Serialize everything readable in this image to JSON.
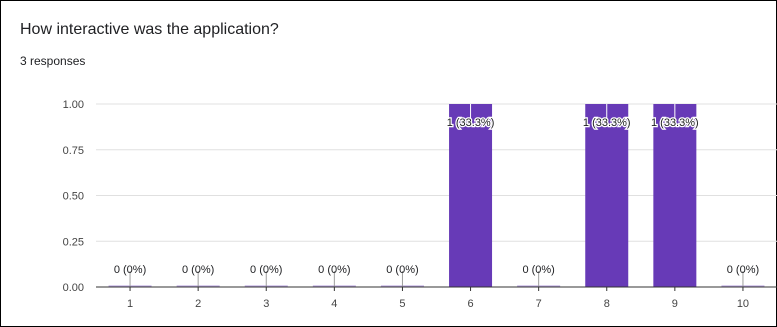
{
  "card": {
    "title": "How interactive was the application?",
    "responses": "3 responses"
  },
  "colors": {
    "bar": "#673ab7",
    "grid": "#e0e0e0",
    "axis": "#333333",
    "text": "#202124"
  },
  "chart_data": {
    "type": "bar",
    "title": "",
    "xlabel": "",
    "ylabel": "",
    "categories": [
      "1",
      "2",
      "3",
      "4",
      "5",
      "6",
      "7",
      "8",
      "9",
      "10"
    ],
    "values": [
      0,
      0,
      0,
      0,
      0,
      1,
      0,
      1,
      1,
      0
    ],
    "data_labels": [
      "0 (0%)",
      "0 (0%)",
      "0 (0%)",
      "0 (0%)",
      "0 (0%)",
      "1 (33.3%)",
      "0 (0%)",
      "1 (33.3%)",
      "1 (33.3%)",
      "0 (0%)"
    ],
    "yticks": [
      "0.00",
      "0.25",
      "0.50",
      "0.75",
      "1.00"
    ],
    "ylim": [
      0,
      1
    ],
    "grid": true
  }
}
